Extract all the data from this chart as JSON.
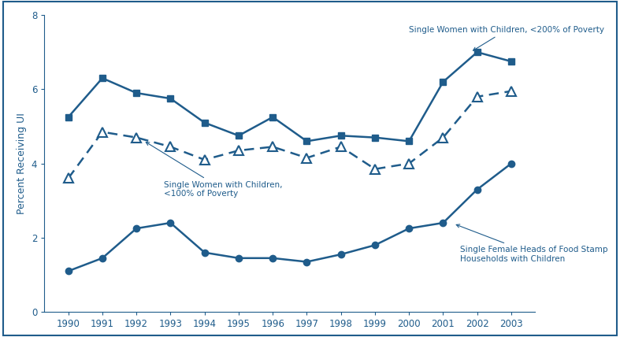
{
  "years": [
    1990,
    1991,
    1992,
    1993,
    1994,
    1995,
    1996,
    1997,
    1998,
    1999,
    2000,
    2001,
    2002,
    2003
  ],
  "series_200pct": [
    5.25,
    6.3,
    5.9,
    5.75,
    5.1,
    4.75,
    5.25,
    4.6,
    4.75,
    4.7,
    4.6,
    6.2,
    7.0,
    6.75
  ],
  "series_100pct": [
    3.6,
    4.85,
    4.7,
    4.45,
    4.1,
    4.35,
    4.45,
    4.15,
    4.45,
    3.85,
    4.0,
    4.7,
    5.8,
    5.95
  ],
  "series_foodstamp": [
    1.1,
    1.45,
    2.25,
    2.4,
    1.6,
    1.45,
    1.45,
    1.35,
    1.55,
    1.8,
    2.25,
    2.4,
    3.3,
    4.0
  ],
  "color": "#1f5c8b",
  "ylim": [
    0,
    8
  ],
  "yticks": [
    0,
    2,
    4,
    6,
    8
  ],
  "ylabel": "Percent Receiving UI",
  "annotation_200pct": "Single Women with Children, <200% of Poverty",
  "annotation_100pct": "Single Women with Children,\n<100% of Poverty",
  "annotation_foodstamp": "Single Female Heads of Food Stamp\nHouseholds with Children",
  "background_color": "#ffffff",
  "border_color": "#1f5c8b",
  "xlim_left": 1989.3,
  "xlim_right": 2003.7
}
